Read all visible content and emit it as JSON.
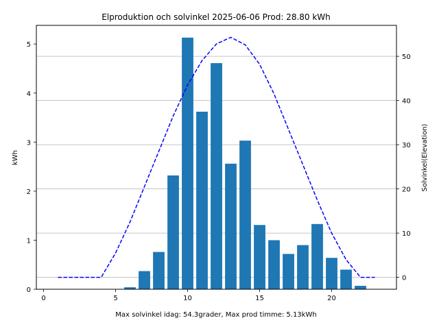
{
  "chart_data": {
    "type": "bar",
    "title": "Elproduktion och solvinkel 2025-06-06 Prod: 28.80 kWh",
    "xlabel": "Max solvinkel idag: 54.3grader, Max prod timme: 5.13kWh",
    "ylabel": "kWh",
    "y2label": "Solvinkel(Elevation)",
    "xlim": [
      -0.5,
      24.5
    ],
    "ylim": [
      0,
      5.38
    ],
    "y2lim": [
      -2.7,
      57.0
    ],
    "xticks": [
      0,
      5,
      10,
      15,
      20
    ],
    "yticks": [
      0,
      1,
      2,
      3,
      4,
      5
    ],
    "y2ticks": [
      0,
      10,
      20,
      30,
      40,
      50
    ],
    "grid": "horizontal lines at secondary axis ticks",
    "legend": "none",
    "colors": {
      "bars": "#1f77b4",
      "elevation_line": "#0000ff",
      "y2_label": "#0000ff"
    },
    "series": [
      {
        "kind": "bar",
        "axis": "left",
        "x": [
          6,
          7,
          8,
          9,
          10,
          11,
          12,
          13,
          14,
          15,
          16,
          17,
          18,
          19,
          20,
          21,
          22
        ],
        "values": [
          0.04,
          0.37,
          0.76,
          2.32,
          5.13,
          3.62,
          4.61,
          2.56,
          3.03,
          1.31,
          1.0,
          0.72,
          0.9,
          1.33,
          0.64,
          0.4,
          0.07
        ]
      },
      {
        "kind": "line",
        "axis": "right",
        "style": "dashed",
        "x": [
          1,
          2,
          3,
          4,
          5,
          6,
          7,
          8,
          9,
          10,
          11,
          12,
          13,
          14,
          15,
          16,
          17,
          18,
          19,
          20,
          21,
          22,
          23
        ],
        "values": [
          0,
          0,
          0,
          0,
          5.5,
          12.5,
          20.5,
          28.5,
          36.5,
          43.5,
          49.0,
          52.8,
          54.3,
          52.6,
          48.2,
          41.5,
          33.5,
          25.5,
          17.5,
          10.0,
          4.0,
          0,
          0
        ]
      }
    ]
  }
}
